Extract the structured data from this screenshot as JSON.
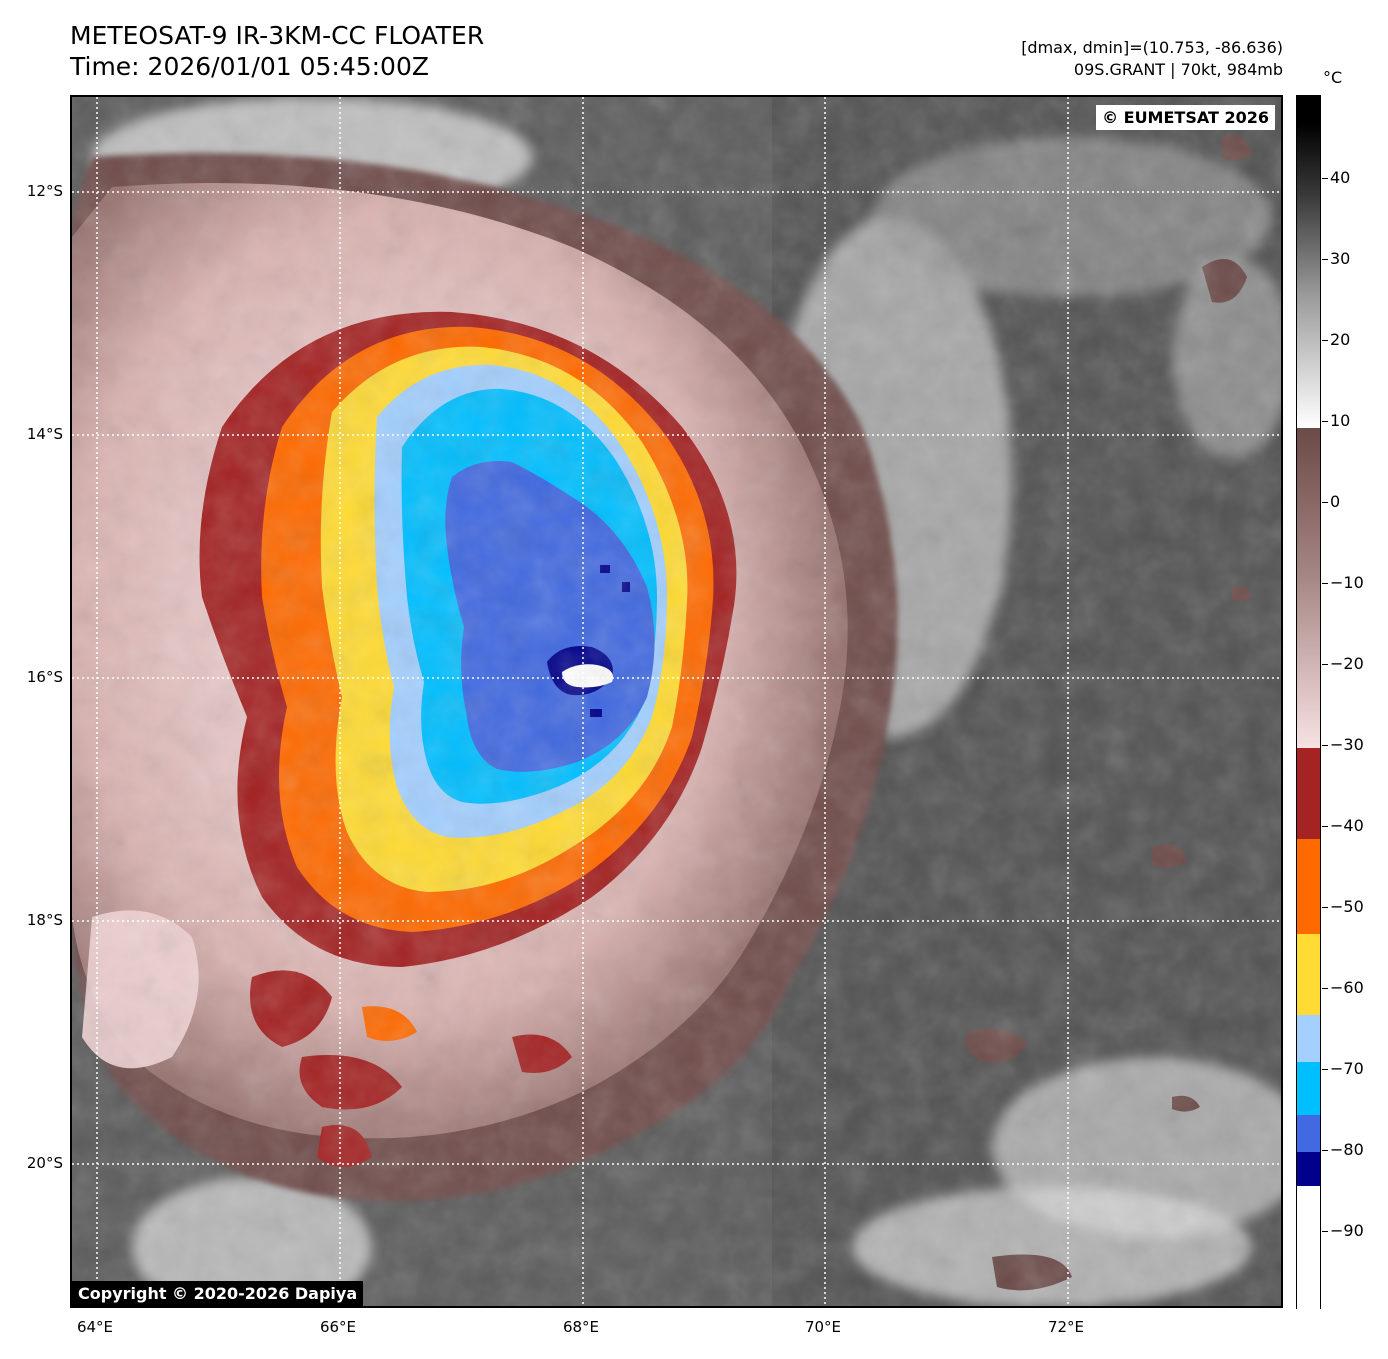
{
  "header": {
    "title_line1": "METEOSAT-9 IR-3KM-CC FLOATER",
    "title_line2": "Time: 2026/01/01 05:45:00Z",
    "range_text": "[dmax, dmin]=(10.753, -86.636)",
    "storm_text": "09S.GRANT | 70kt, 984mb"
  },
  "map": {
    "eumetsat_credit": "© EUMETSAT 2026",
    "copyright": "Copyright © 2020-2026 Dapiya",
    "lat_labels": [
      "12°S",
      "14°S",
      "16°S",
      "18°S",
      "20°S"
    ],
    "lon_labels": [
      "64°E",
      "66°E",
      "68°E",
      "70°E",
      "72°E"
    ]
  },
  "colorbar": {
    "unit": "°C",
    "tick_labels": [
      "40",
      "30",
      "20",
      "10",
      "0",
      "−10",
      "−20",
      "−30",
      "−40",
      "−50",
      "−60",
      "−70",
      "−80",
      "−90"
    ],
    "colors": {
      "white_core": "#ffffff",
      "navy": "#00008b",
      "royal_blue": "#4169e1",
      "deep_sky": "#00bfff",
      "light_blue": "#a3d0ff",
      "yellow": "#ffdb33",
      "orange": "#ff6a00",
      "dark_red": "#a52323",
      "warm_pink": "#f2d5d5",
      "warm_brown": "#6b4a48",
      "grey_white": "#ffffff",
      "grey_black": "#000000"
    }
  }
}
